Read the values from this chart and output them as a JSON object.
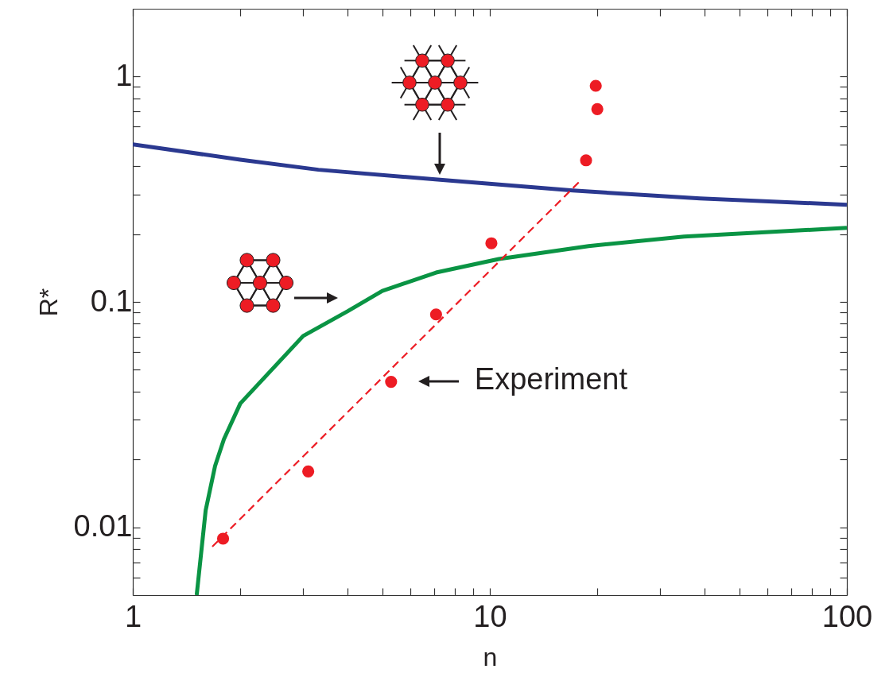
{
  "chart_data": {
    "type": "line",
    "xlabel": "n",
    "ylabel": "R*",
    "log": "xy",
    "grid": false,
    "xlim": [
      1,
      100
    ],
    "ylim": [
      0.005,
      2
    ],
    "xticks": [
      1,
      {
        "value": 2,
        "label": null
      },
      {
        "value": 3,
        "label": null
      },
      {
        "value": 4,
        "label": null
      },
      {
        "value": 5,
        "label": null
      },
      {
        "value": 6,
        "label": null
      },
      {
        "value": 7,
        "label": null
      },
      {
        "value": 8,
        "label": null
      },
      {
        "value": 9,
        "label": null
      },
      10,
      {
        "value": 20,
        "label": null
      },
      {
        "value": 30,
        "label": null
      },
      {
        "value": 40,
        "label": null
      },
      {
        "value": 50,
        "label": null
      },
      {
        "value": 60,
        "label": null
      },
      {
        "value": 70,
        "label": null
      },
      {
        "value": 80,
        "label": null
      },
      {
        "value": 90,
        "label": null
      },
      100
    ],
    "yticks": [
      {
        "value": 0.006,
        "label": null
      },
      {
        "value": 0.007,
        "label": null
      },
      {
        "value": 0.008,
        "label": null
      },
      {
        "value": 0.009,
        "label": null
      },
      0.01,
      {
        "value": 0.02,
        "label": null
      },
      {
        "value": 0.03,
        "label": null
      },
      {
        "value": 0.04,
        "label": null
      },
      {
        "value": 0.05,
        "label": null
      },
      {
        "value": 0.06,
        "label": null
      },
      {
        "value": 0.07,
        "label": null
      },
      {
        "value": 0.08,
        "label": null
      },
      {
        "value": 0.09,
        "label": null
      },
      0.1,
      {
        "value": 0.2,
        "label": null
      },
      {
        "value": 0.3,
        "label": null
      },
      {
        "value": 0.4,
        "label": null
      },
      {
        "value": 0.5,
        "label": null
      },
      {
        "value": 0.6,
        "label": null
      },
      {
        "value": 0.7,
        "label": null
      },
      {
        "value": 0.8,
        "label": null
      },
      {
        "value": 0.9,
        "label": null
      },
      1
    ],
    "series": [
      {
        "color": "#2b3990",
        "line_style": "solid",
        "x": [
          1,
          2,
          3.31,
          7.14,
          17.1,
          38.8,
          100
        ],
        "values": [
          0.5,
          0.428,
          0.386,
          0.349,
          0.312,
          0.288,
          0.27
        ]
      },
      {
        "color": "#0a9444",
        "line_style": "solid",
        "x": [
          1.51,
          1.6,
          1.7,
          1.8,
          2.0,
          3.0,
          4.0,
          5.0,
          7.07,
          10.6,
          18.9,
          35,
          100
        ],
        "values": [
          0.005,
          0.0119,
          0.0187,
          0.0246,
          0.0354,
          0.0706,
          0.091,
          0.112,
          0.135,
          0.155,
          0.177,
          0.195,
          0.213
        ]
      },
      {
        "color": "#ed1c24",
        "line_style": "dashed",
        "x": [
          1.67,
          17.8
        ],
        "values": [
          0.0082,
          0.341
        ]
      },
      {
        "type": "scatter",
        "name": "Experiment",
        "color": "#ed1c24",
        "marker": "circle",
        "x": [
          1.79,
          3.1,
          5.29,
          7.07,
          10.1,
          18.6,
          20.0,
          19.8
        ],
        "values": [
          0.0089,
          0.0177,
          0.0442,
          0.088,
          0.182,
          0.425,
          0.717,
          0.91
        ]
      }
    ]
  }
}
